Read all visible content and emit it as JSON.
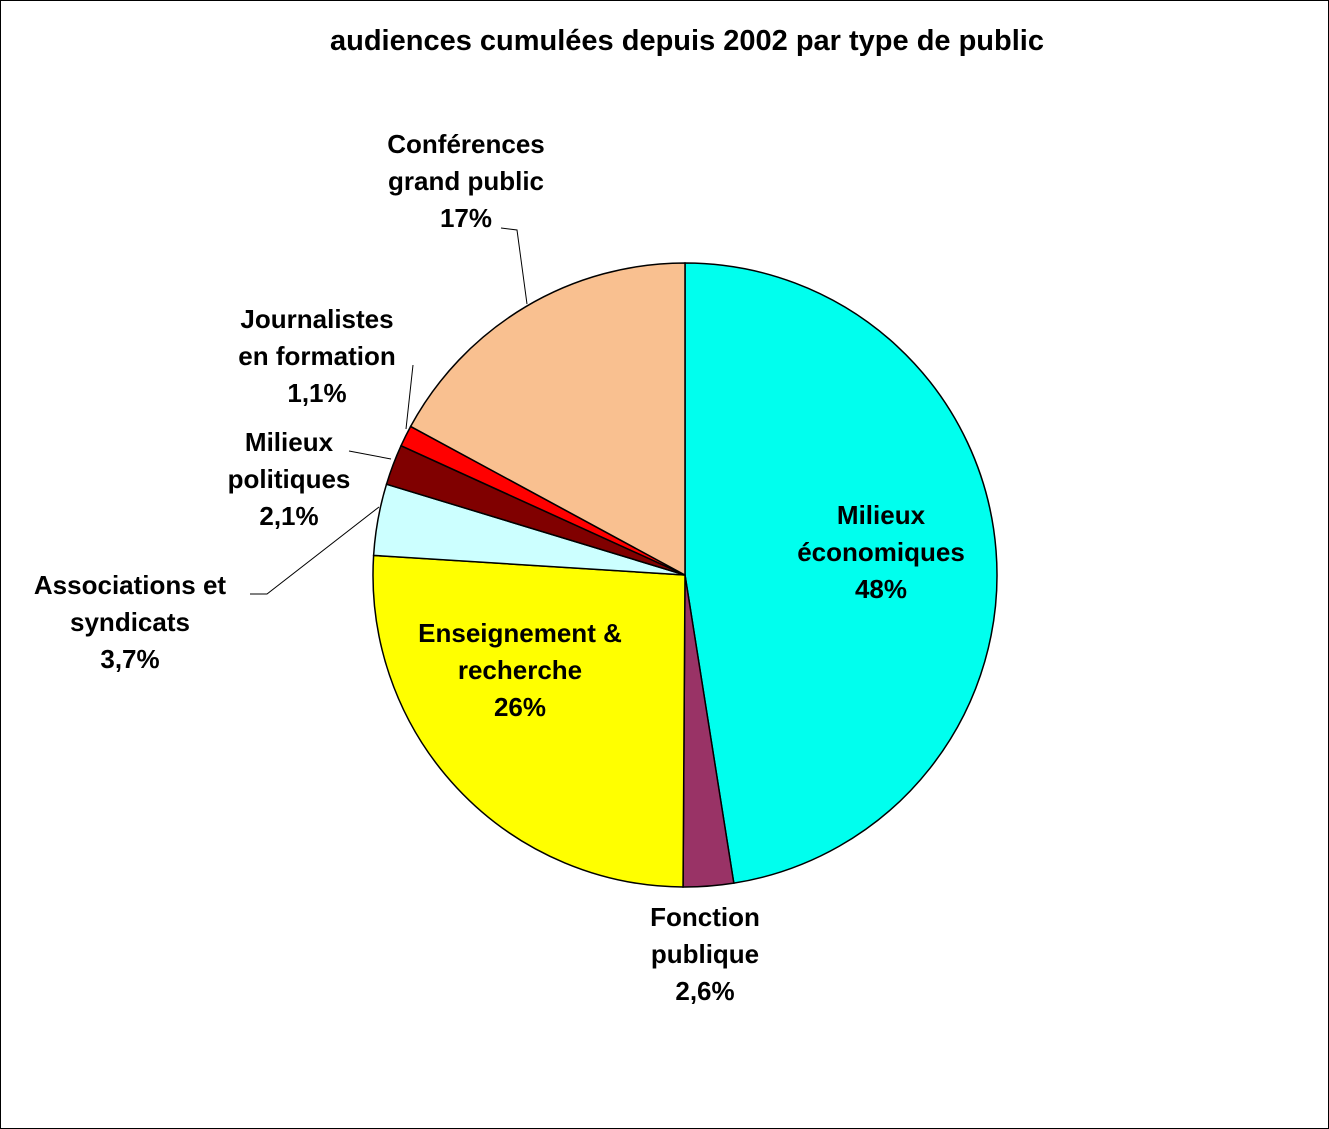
{
  "chart_data": {
    "type": "pie",
    "title": "audiences cumulées depuis 2002 par type de public",
    "start_angle_deg": 0,
    "direction": "clockwise",
    "slices": [
      {
        "name": "Milieux économiques",
        "lines": [
          "Milieux",
          "économiques",
          "48%"
        ],
        "value": 47.5,
        "color": "#00FFEE"
      },
      {
        "name": "Fonction publique",
        "lines": [
          "Fonction",
          "publique",
          "2,6%"
        ],
        "value": 2.6,
        "color": "#993366"
      },
      {
        "name": "Enseignement & recherche",
        "lines": [
          "Enseignement &",
          "recherche",
          "26%"
        ],
        "value": 25.9,
        "color": "#FFFF00"
      },
      {
        "name": "Associations et syndicats",
        "lines": [
          "Associations et",
          "syndicats",
          "3,7%"
        ],
        "value": 3.7,
        "color": "#CCFFFF"
      },
      {
        "name": "Milieux politiques",
        "lines": [
          "Milieux",
          "politiques",
          "2,1%"
        ],
        "value": 2.1,
        "color": "#800000"
      },
      {
        "name": "Journalistes en formation",
        "lines": [
          "Journalistes",
          "en formation",
          "1,1%"
        ],
        "value": 1.1,
        "color": "#FF0000"
      },
      {
        "name": "Conférences grand public",
        "lines": [
          "Conférences",
          "grand public",
          "17%"
        ],
        "value": 17.1,
        "color": "#F9C090"
      }
    ]
  }
}
